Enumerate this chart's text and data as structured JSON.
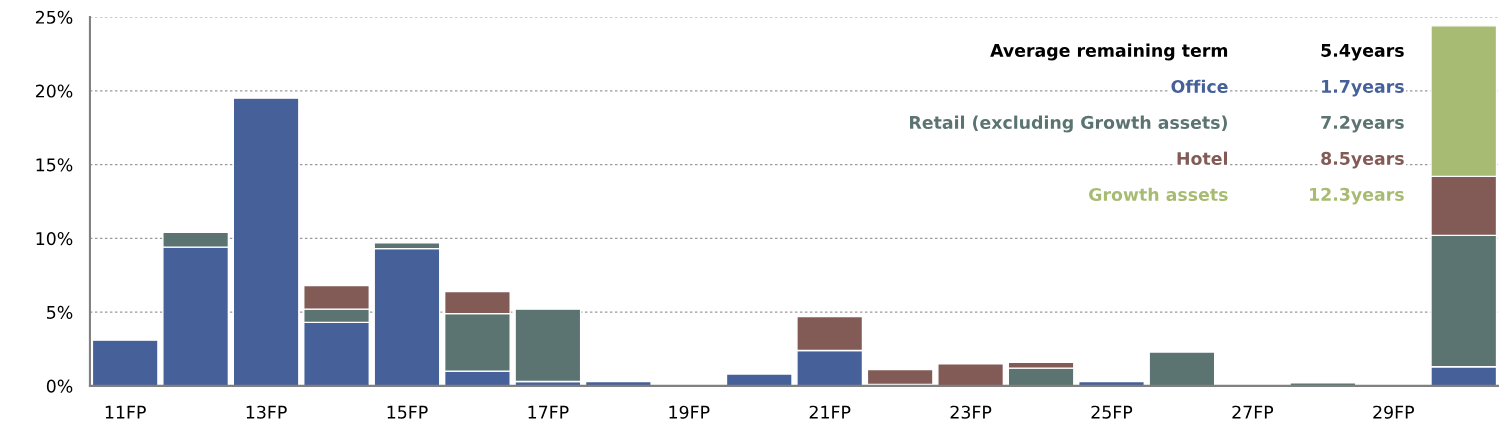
{
  "chart_data": {
    "type": "bar",
    "stacked": true,
    "categories": [
      "11FP",
      null,
      "13FP",
      null,
      "15FP",
      null,
      "17FP",
      null,
      "19FP",
      null,
      "21FP",
      null,
      "23FP",
      null,
      "25FP",
      null,
      "27FP",
      null,
      "29FP",
      null
    ],
    "series": [
      {
        "name": "Office",
        "color": "#46609a",
        "values": [
          3.1,
          9.4,
          19.5,
          4.3,
          9.3,
          1.0,
          0.3,
          0.3,
          null,
          0.8,
          2.4,
          null,
          null,
          null,
          0.3,
          null,
          null,
          null,
          null,
          1.3
        ]
      },
      {
        "name": "Retail (excluding Growth assets)",
        "color": "#5b7472",
        "values": [
          null,
          1.0,
          null,
          0.9,
          0.4,
          3.9,
          4.9,
          null,
          null,
          null,
          null,
          0.1,
          null,
          1.2,
          null,
          2.3,
          null,
          0.2,
          null,
          8.9
        ]
      },
      {
        "name": "Hotel",
        "color": "#825b57",
        "values": [
          null,
          null,
          null,
          1.6,
          null,
          1.5,
          null,
          null,
          null,
          null,
          2.3,
          1.0,
          1.5,
          0.4,
          null,
          null,
          null,
          null,
          null,
          4.0
        ]
      },
      {
        "name": "Growth assets",
        "color": "#a8bb73",
        "values": [
          null,
          null,
          null,
          null,
          null,
          null,
          null,
          null,
          null,
          null,
          null,
          null,
          null,
          null,
          null,
          null,
          null,
          null,
          null,
          10.2
        ]
      }
    ],
    "annotations": [
      "Average remaining term",
      "5.4years",
      "1.7years",
      "7.2years",
      "8.5years",
      "12.3years"
    ],
    "ylim": [
      0,
      25
    ],
    "yticks": [
      {
        "value": 0,
        "label": "0%"
      },
      {
        "value": 5,
        "label": "5%"
      },
      {
        "value": 10,
        "label": "10%"
      },
      {
        "value": 15,
        "label": "15%"
      },
      {
        "value": 20,
        "label": "20%"
      },
      {
        "value": 25,
        "label": "25%"
      }
    ],
    "grid": "y",
    "legend": "top right"
  }
}
